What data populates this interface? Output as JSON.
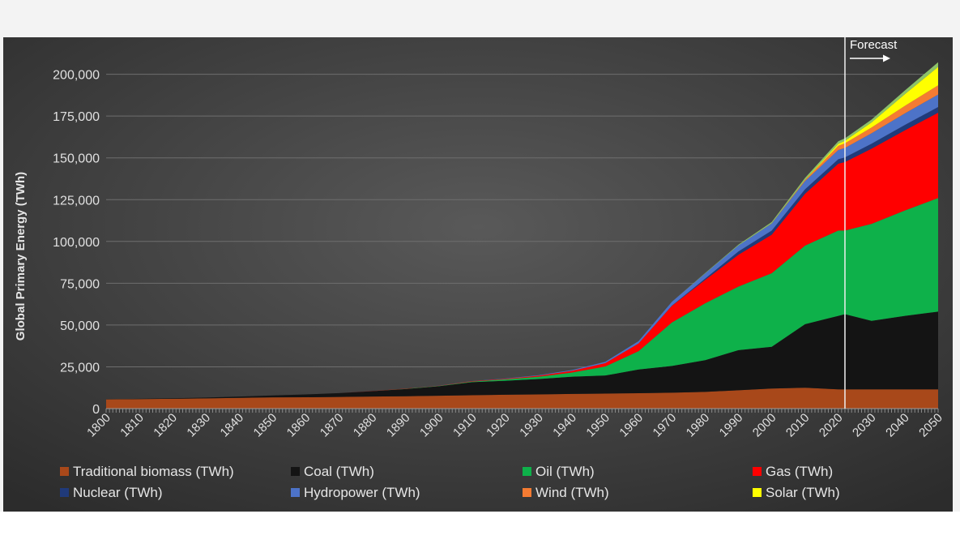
{
  "chart_data": {
    "type": "area",
    "stacked": true,
    "title": "",
    "xlabel": "",
    "ylabel": "Global Primary Energy (TWh)",
    "xlim": [
      1800,
      2050
    ],
    "ylim": [
      0,
      210000
    ],
    "x_ticks": [
      "1800",
      "1810",
      "1820",
      "1830",
      "1840",
      "1850",
      "1860",
      "1870",
      "1880",
      "1890",
      "1900",
      "1910",
      "1920",
      "1930",
      "1940",
      "1950",
      "1960",
      "1970",
      "1980",
      "1990",
      "2000",
      "2010",
      "2020",
      "2030",
      "2040",
      "2050"
    ],
    "y_ticks": [
      "0",
      "25,000",
      "50,000",
      "75,000",
      "100,000",
      "125,000",
      "150,000",
      "175,000",
      "200,000"
    ],
    "grid": true,
    "legend_position": "bottom",
    "annotations": [
      {
        "text": "Forecast",
        "x": 2022
      }
    ],
    "x": [
      1800,
      1810,
      1820,
      1830,
      1840,
      1850,
      1860,
      1870,
      1880,
      1890,
      1900,
      1910,
      1920,
      1930,
      1940,
      1950,
      1960,
      1970,
      1980,
      1990,
      2000,
      2010,
      2020,
      2022,
      2030,
      2040,
      2050
    ],
    "series": [
      {
        "name": "Traditional biomass (TWh)",
        "color": "#a8481a",
        "values": [
          5500,
          5700,
          5900,
          6100,
          6400,
          6700,
          6800,
          7000,
          7200,
          7400,
          7700,
          8000,
          8300,
          8500,
          8800,
          9000,
          9200,
          9500,
          10000,
          11000,
          12000,
          12500,
          11500,
          11500,
          11500,
          11500,
          11500
        ]
      },
      {
        "name": "Coal (TWh)",
        "color": "#141414",
        "values": [
          100,
          200,
          300,
          500,
          800,
          1200,
          1700,
          2300,
          3200,
          4300,
          5700,
          7800,
          8400,
          9200,
          10300,
          10800,
          14200,
          16000,
          19000,
          24000,
          25000,
          38000,
          44000,
          45000,
          41000,
          44000,
          46500
        ]
      },
      {
        "name": "Oil (TWh)",
        "color": "#0eb14a",
        "values": [
          0,
          0,
          0,
          0,
          0,
          0,
          0,
          0,
          50,
          150,
          200,
          400,
          800,
          1400,
          2500,
          5400,
          11000,
          26000,
          34000,
          38000,
          44000,
          47000,
          51000,
          50000,
          58000,
          63000,
          68000
        ]
      },
      {
        "name": "Gas (TWh)",
        "color": "#ff0000",
        "values": [
          0,
          0,
          0,
          0,
          0,
          0,
          0,
          0,
          50,
          100,
          100,
          200,
          300,
          600,
          1000,
          2000,
          4600,
          10000,
          14000,
          19000,
          23000,
          31000,
          40000,
          41000,
          45000,
          48000,
          51000
        ]
      },
      {
        "name": "Nuclear (TWh)",
        "color": "#203a7a",
        "values": [
          0,
          0,
          0,
          0,
          0,
          0,
          0,
          0,
          0,
          0,
          0,
          0,
          0,
          0,
          0,
          0,
          0,
          100,
          800,
          2000,
          2500,
          2700,
          2700,
          2800,
          3000,
          3200,
          3400
        ]
      },
      {
        "name": "Hydropower (TWh)",
        "color": "#4d73c8",
        "values": [
          0,
          0,
          0,
          0,
          0,
          0,
          0,
          0,
          0,
          0,
          50,
          100,
          200,
          300,
          500,
          800,
          1400,
          2300,
          3100,
          3600,
          4200,
          4900,
          5500,
          5600,
          6200,
          6900,
          7500
        ]
      },
      {
        "name": "Wind (TWh)",
        "color": "#f47b32",
        "values": [
          0,
          0,
          0,
          0,
          0,
          0,
          0,
          0,
          0,
          0,
          0,
          0,
          0,
          0,
          0,
          0,
          0,
          0,
          0,
          0,
          100,
          600,
          2500,
          2800,
          3500,
          4500,
          5500
        ]
      },
      {
        "name": "Solar (TWh)",
        "color": "#ffff00",
        "values": [
          0,
          0,
          0,
          0,
          0,
          0,
          0,
          0,
          0,
          0,
          0,
          0,
          0,
          0,
          0,
          0,
          0,
          0,
          0,
          0,
          0,
          100,
          1200,
          1500,
          3000,
          7000,
          11000
        ]
      },
      {
        "name": "",
        "color": "#8cc269",
        "values": [
          0,
          0,
          0,
          0,
          0,
          0,
          0,
          0,
          0,
          0,
          0,
          0,
          0,
          0,
          0,
          0,
          0,
          0,
          200,
          500,
          800,
          1200,
          1500,
          1500,
          1700,
          2200,
          2800
        ]
      }
    ],
    "legend": [
      {
        "label": "Traditional biomass (TWh)",
        "color": "#a8481a"
      },
      {
        "label": "Coal (TWh)",
        "color": "#141414"
      },
      {
        "label": "Oil (TWh)",
        "color": "#0eb14a"
      },
      {
        "label": "Gas (TWh)",
        "color": "#ff0000"
      },
      {
        "label": "Nuclear (TWh)",
        "color": "#203a7a"
      },
      {
        "label": "Hydropower (TWh)",
        "color": "#4d73c8"
      },
      {
        "label": "Wind (TWh)",
        "color": "#f47b32"
      },
      {
        "label": "Solar (TWh)",
        "color": "#ffff00"
      }
    ]
  }
}
